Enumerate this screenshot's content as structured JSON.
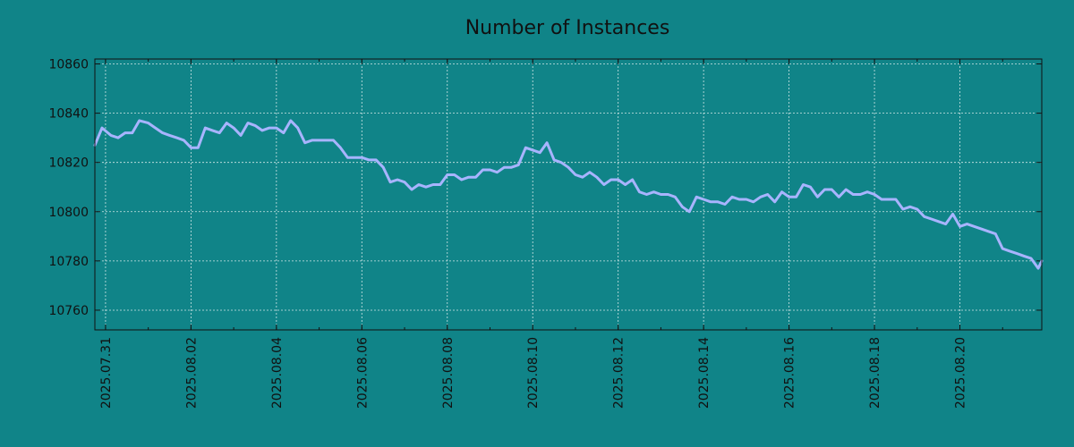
{
  "chart_data": {
    "type": "line",
    "title": "Number of Instances",
    "xlabel": "",
    "ylabel": "",
    "grid": true,
    "legend": "none",
    "colors": {
      "background": "#108488",
      "line": "#a8b4ff",
      "grid": "#cfe6e6",
      "axis": "#111111"
    },
    "xlim": [
      "2025-07-30T18:00",
      "2025-08-21T22:00"
    ],
    "ylim": [
      10752,
      10862
    ],
    "y_ticks": [
      10760,
      10780,
      10800,
      10820,
      10840,
      10860
    ],
    "x_ticks": [
      "2025.07.31",
      "2025.08.02",
      "2025.08.04",
      "2025.08.06",
      "2025.08.08",
      "2025.08.10",
      "2025.08.12",
      "2025.08.14",
      "2025.08.16",
      "2025.08.18",
      "2025.08.20"
    ],
    "series": [
      {
        "x": [
          "2025-07-30T18:00",
          "2025-07-30T22:00",
          "2025-07-31T03:00",
          "2025-07-31T07:00",
          "2025-07-31T11:00",
          "2025-07-31T15:00",
          "2025-07-31T19:00",
          "2025-08-01T00:00",
          "2025-08-01T04:00",
          "2025-08-01T08:00",
          "2025-08-01T12:00",
          "2025-08-01T16:00",
          "2025-08-01T20:00",
          "2025-08-02T00:00",
          "2025-08-02T04:00",
          "2025-08-02T08:00",
          "2025-08-02T12:00",
          "2025-08-02T16:00",
          "2025-08-02T20:00",
          "2025-08-03T00:00",
          "2025-08-03T04:00",
          "2025-08-03T08:00",
          "2025-08-03T12:00",
          "2025-08-03T16:00",
          "2025-08-03T20:00",
          "2025-08-04T00:00",
          "2025-08-04T04:00",
          "2025-08-04T08:00",
          "2025-08-04T12:00",
          "2025-08-04T16:00",
          "2025-08-04T20:00",
          "2025-08-05T00:00",
          "2025-08-05T04:00",
          "2025-08-05T08:00",
          "2025-08-05T12:00",
          "2025-08-05T16:00",
          "2025-08-05T20:00",
          "2025-08-06T00:00",
          "2025-08-06T04:00",
          "2025-08-06T08:00",
          "2025-08-06T12:00",
          "2025-08-06T16:00",
          "2025-08-06T20:00",
          "2025-08-07T00:00",
          "2025-08-07T04:00",
          "2025-08-07T08:00",
          "2025-08-07T12:00",
          "2025-08-07T16:00",
          "2025-08-07T20:00",
          "2025-08-08T00:00",
          "2025-08-08T04:00",
          "2025-08-08T08:00",
          "2025-08-08T12:00",
          "2025-08-08T16:00",
          "2025-08-08T20:00",
          "2025-08-09T00:00",
          "2025-08-09T04:00",
          "2025-08-09T08:00",
          "2025-08-09T12:00",
          "2025-08-09T16:00",
          "2025-08-09T20:00",
          "2025-08-10T00:00",
          "2025-08-10T04:00",
          "2025-08-10T08:00",
          "2025-08-10T12:00",
          "2025-08-10T16:00",
          "2025-08-10T20:00",
          "2025-08-11T00:00",
          "2025-08-11T04:00",
          "2025-08-11T08:00",
          "2025-08-11T12:00",
          "2025-08-11T16:00",
          "2025-08-11T20:00",
          "2025-08-12T00:00",
          "2025-08-12T04:00",
          "2025-08-12T08:00",
          "2025-08-12T12:00",
          "2025-08-12T16:00",
          "2025-08-12T20:00",
          "2025-08-13T00:00",
          "2025-08-13T04:00",
          "2025-08-13T08:00",
          "2025-08-13T12:00",
          "2025-08-13T16:00",
          "2025-08-13T20:00",
          "2025-08-14T00:00",
          "2025-08-14T04:00",
          "2025-08-14T08:00",
          "2025-08-14T12:00",
          "2025-08-14T16:00",
          "2025-08-14T20:00",
          "2025-08-15T00:00",
          "2025-08-15T04:00",
          "2025-08-15T08:00",
          "2025-08-15T12:00",
          "2025-08-15T16:00",
          "2025-08-15T20:00",
          "2025-08-16T00:00",
          "2025-08-16T04:00",
          "2025-08-16T08:00",
          "2025-08-16T12:00",
          "2025-08-16T16:00",
          "2025-08-16T20:00",
          "2025-08-17T00:00",
          "2025-08-17T04:00",
          "2025-08-17T08:00",
          "2025-08-17T12:00",
          "2025-08-17T16:00",
          "2025-08-17T20:00",
          "2025-08-18T00:00",
          "2025-08-18T04:00",
          "2025-08-18T08:00",
          "2025-08-18T12:00",
          "2025-08-18T16:00",
          "2025-08-18T20:00",
          "2025-08-19T00:00",
          "2025-08-19T04:00",
          "2025-08-19T08:00",
          "2025-08-19T12:00",
          "2025-08-19T16:00",
          "2025-08-19T20:00",
          "2025-08-20T00:00",
          "2025-08-20T04:00",
          "2025-08-20T08:00",
          "2025-08-20T12:00",
          "2025-08-20T16:00",
          "2025-08-20T20:00",
          "2025-08-21T00:00",
          "2025-08-21T04:00",
          "2025-08-21T08:00",
          "2025-08-21T12:00",
          "2025-08-21T16:00",
          "2025-08-21T20:00",
          "2025-08-21T22:00"
        ],
        "y": [
          10827,
          10834,
          10831,
          10830,
          10832,
          10832,
          10837,
          10836,
          10834,
          10832,
          10831,
          10830,
          10829,
          10826,
          10826,
          10834,
          10833,
          10832,
          10836,
          10834,
          10831,
          10836,
          10835,
          10833,
          10834,
          10834,
          10832,
          10837,
          10834,
          10828,
          10829,
          10829,
          10829,
          10829,
          10826,
          10822,
          10822,
          10822,
          10821,
          10821,
          10818,
          10812,
          10813,
          10812,
          10809,
          10811,
          10810,
          10811,
          10811,
          10815,
          10815,
          10813,
          10814,
          10814,
          10817,
          10817,
          10816,
          10818,
          10818,
          10819,
          10826,
          10825,
          10824,
          10828,
          10821,
          10820,
          10818,
          10815,
          10814,
          10816,
          10814,
          10811,
          10813,
          10813,
          10811,
          10813,
          10808,
          10807,
          10808,
          10807,
          10807,
          10806,
          10802,
          10800,
          10806,
          10805,
          10804,
          10804,
          10803,
          10806,
          10805,
          10805,
          10804,
          10806,
          10807,
          10804,
          10808,
          10806,
          10806,
          10811,
          10810,
          10806,
          10809,
          10809,
          10806,
          10809,
          10807,
          10807,
          10808,
          10807,
          10805,
          10805,
          10805,
          10801,
          10802,
          10801,
          10798,
          10797,
          10796,
          10795,
          10799,
          10794,
          10795,
          10794,
          10793,
          10792,
          10791,
          10785,
          10784,
          10783,
          10782,
          10781,
          10777,
          10780
        ]
      }
    ]
  }
}
